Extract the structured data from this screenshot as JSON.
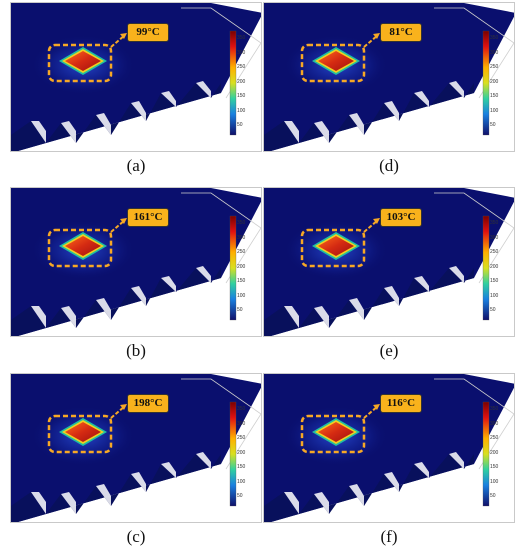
{
  "panels": [
    {
      "id": "a",
      "caption": "(a)",
      "temperature": "99°C"
    },
    {
      "id": "b",
      "caption": "(b)",
      "temperature": "161°C"
    },
    {
      "id": "c",
      "caption": "(c)",
      "temperature": "198°C"
    },
    {
      "id": "d",
      "caption": "(d)",
      "temperature": "81°C"
    },
    {
      "id": "e",
      "caption": "(e)",
      "temperature": "103°C"
    },
    {
      "id": "f",
      "caption": "(f)",
      "temperature": "116°C"
    }
  ],
  "colorbar_ticks": [
    "350",
    "300",
    "250",
    "200",
    "150",
    "100",
    "50"
  ],
  "colors": {
    "background_field": "#0a0f6e",
    "hot_spot": "#d42a12",
    "callout_border": "#f7a825",
    "label_fill": "#f9b21c"
  }
}
